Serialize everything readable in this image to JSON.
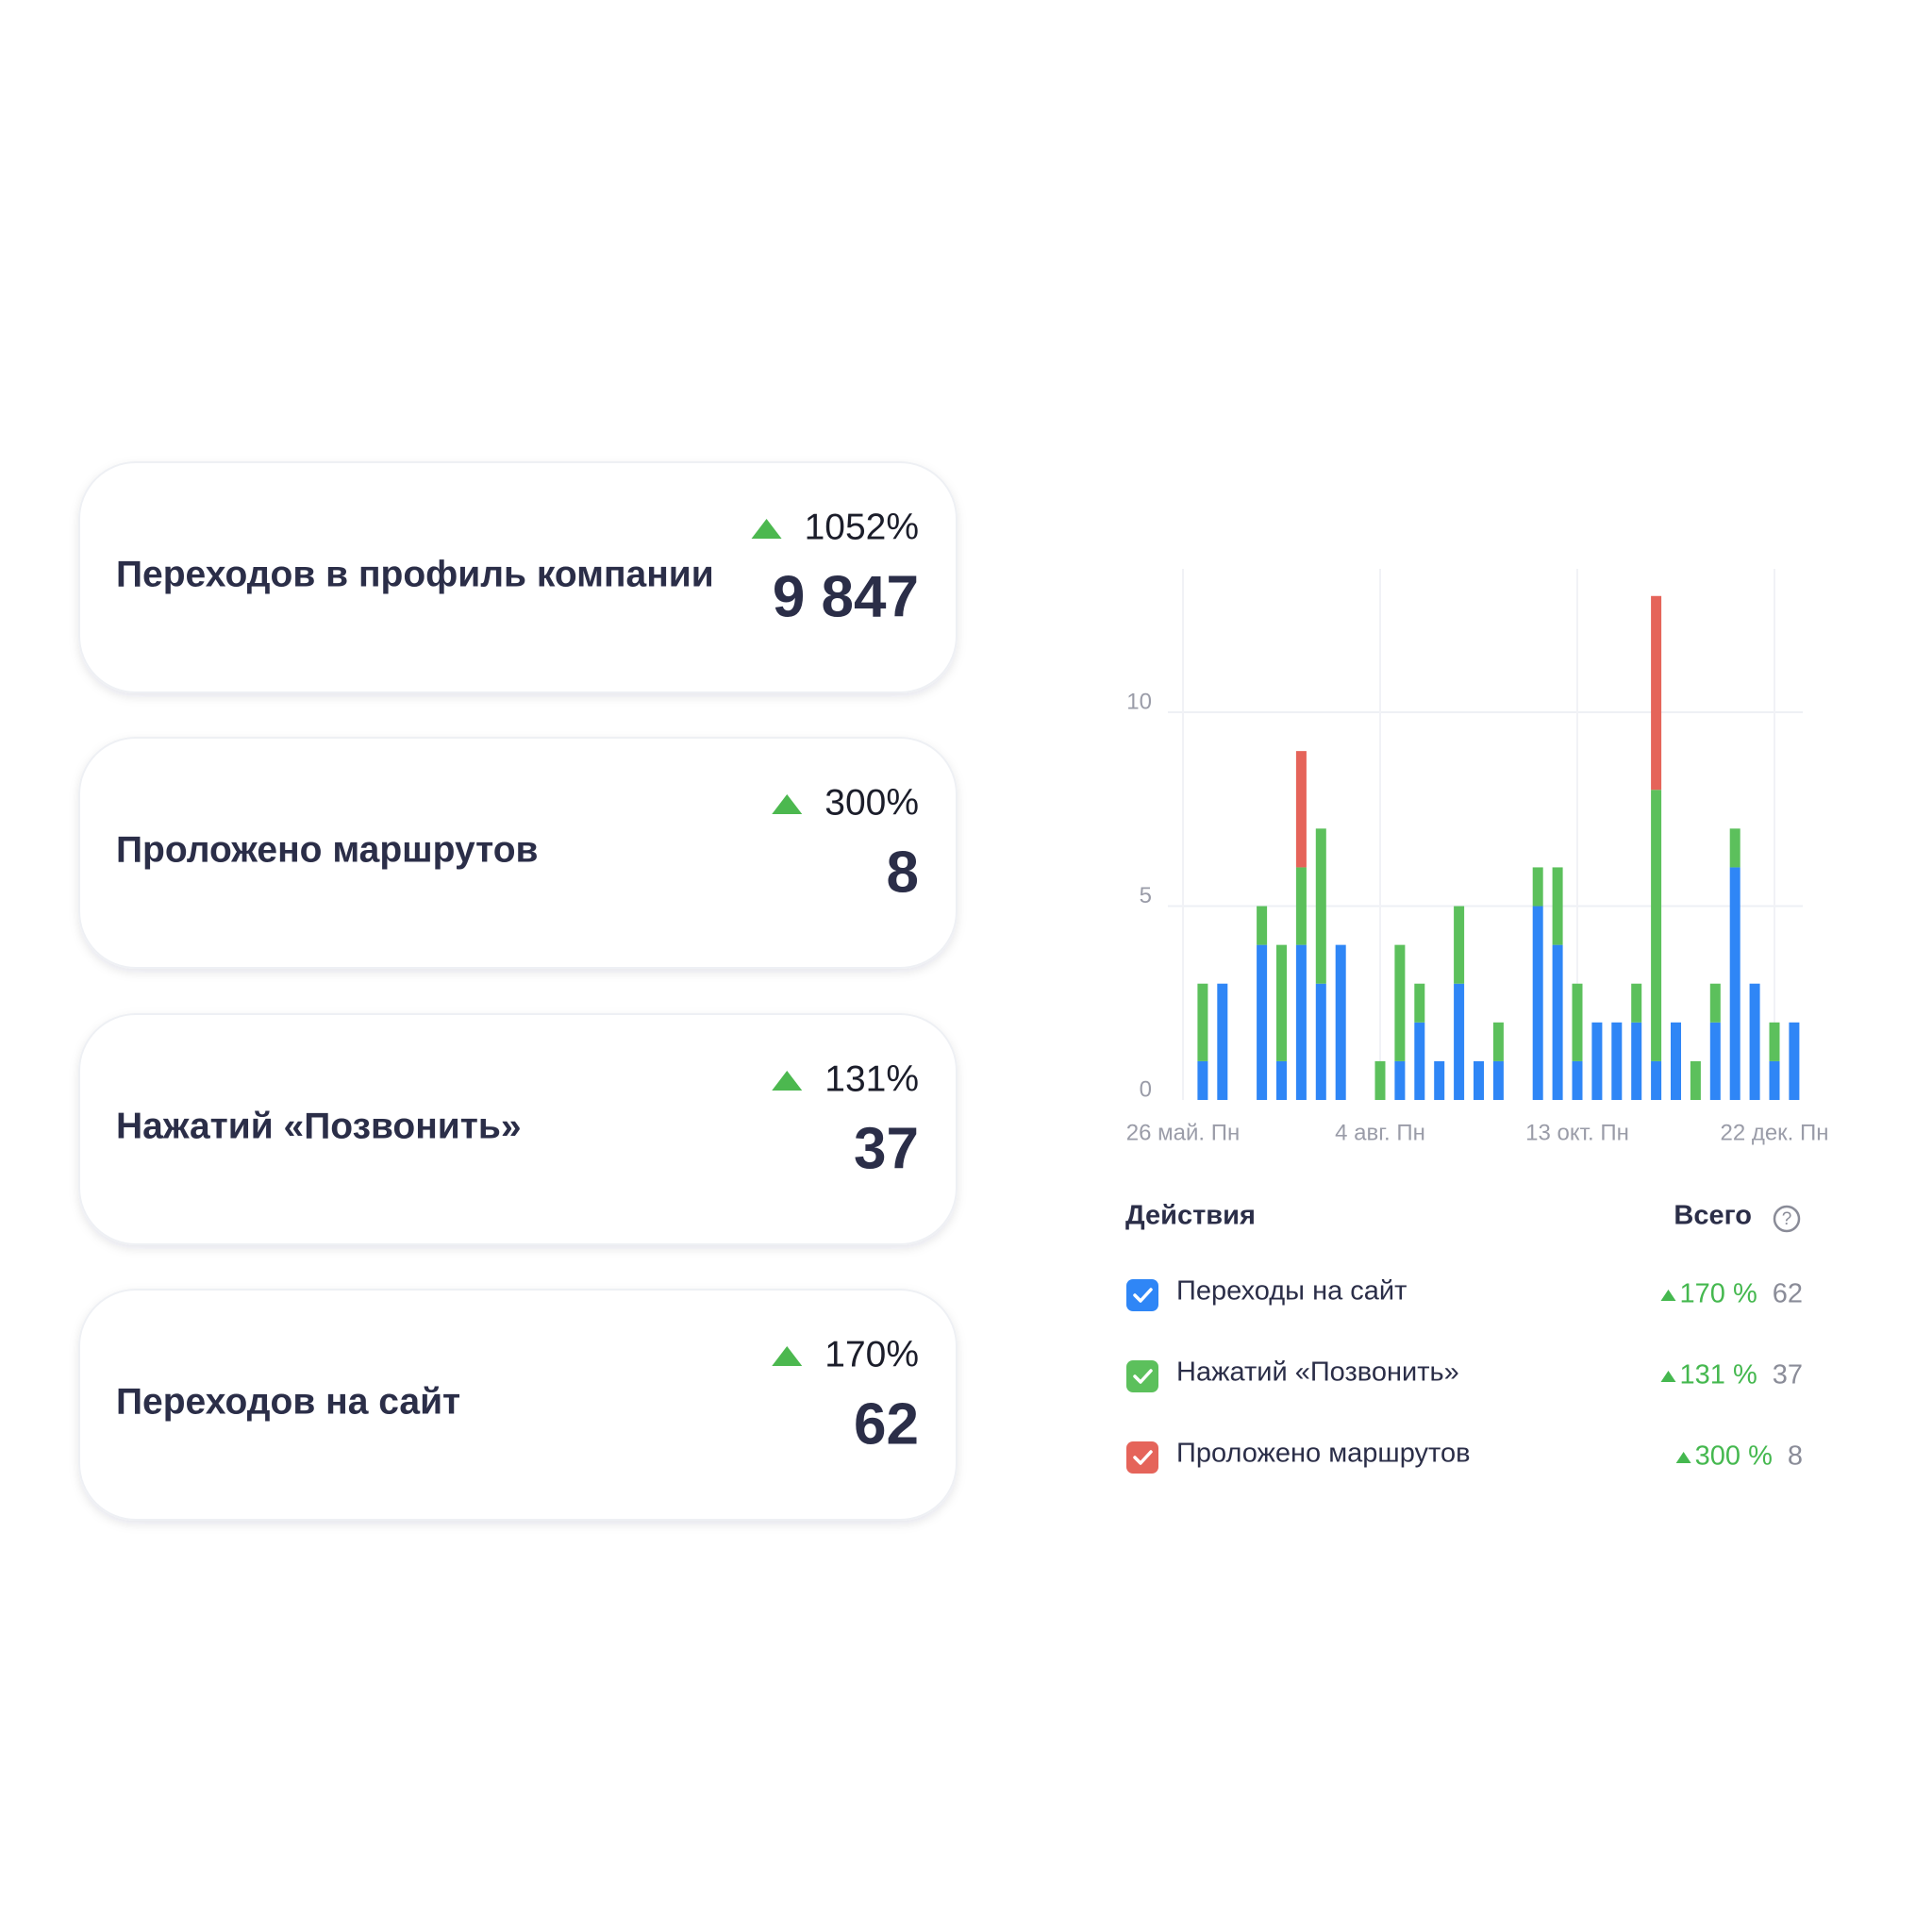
{
  "cards": [
    {
      "title": "Переходов в профиль компании",
      "change": "1052%",
      "value": "9 847"
    },
    {
      "title": "Проложено маршрутов",
      "change": "300%",
      "value": "8"
    },
    {
      "title": "Нажатий «Позвонить»",
      "change": "131%",
      "value": "37"
    },
    {
      "title": "Переходов на сайт",
      "change": "170%",
      "value": "62"
    }
  ],
  "chart_data": {
    "type": "stacked-bar",
    "categories": [
      "26 май. Пн",
      null,
      null,
      null,
      null,
      null,
      null,
      null,
      null,
      null,
      "4 авг. Пн",
      null,
      null,
      null,
      null,
      null,
      null,
      null,
      null,
      null,
      "13 окт. Пн",
      null,
      null,
      null,
      null,
      null,
      null,
      null,
      null,
      null,
      "22 дек. Пн",
      null
    ],
    "ylim": [
      0,
      13.7
    ],
    "yticks": [
      0,
      5,
      10
    ],
    "grid": true,
    "legend_title": "Действия",
    "total_header": "Всего",
    "series": [
      {
        "name": "Переходы на сайт",
        "color": "#2f86f6",
        "change": "170 %",
        "total": 62,
        "values": [
          0,
          1,
          3,
          0,
          4,
          1,
          4,
          3,
          4,
          0,
          0,
          1,
          2,
          1,
          3,
          1,
          1,
          0,
          5,
          4,
          1,
          2,
          2,
          2,
          1,
          2,
          0,
          2,
          6,
          3,
          1,
          2
        ]
      },
      {
        "name": "Нажатий «Позвонить»",
        "color": "#5cc05c",
        "change": "131 %",
        "total": 37,
        "values": [
          0,
          2,
          0,
          0,
          1,
          3,
          2,
          4,
          0,
          0,
          1,
          3,
          1,
          0,
          2,
          0,
          1,
          0,
          1,
          2,
          2,
          0,
          0,
          1,
          7,
          0,
          1,
          1,
          1,
          0,
          1,
          0
        ]
      },
      {
        "name": "Проложено маршрутов",
        "color": "#e5645a",
        "change": "300 %",
        "total": 8,
        "values": [
          0,
          0,
          0,
          0,
          0,
          0,
          3,
          0,
          0,
          0,
          0,
          0,
          0,
          0,
          0,
          0,
          0,
          0,
          0,
          0,
          0,
          0,
          0,
          0,
          5,
          0,
          0,
          0,
          0,
          0,
          0,
          0
        ]
      }
    ]
  }
}
